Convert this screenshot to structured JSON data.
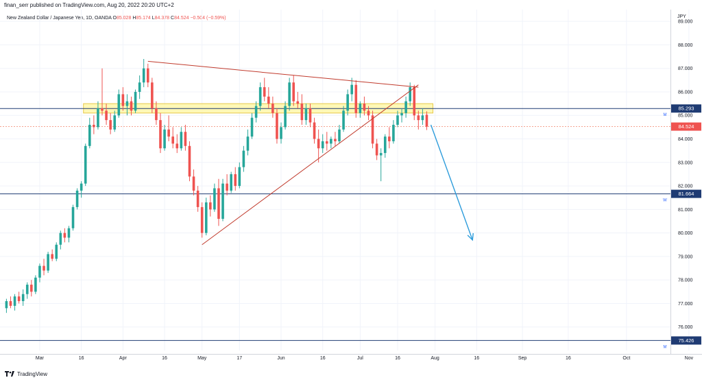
{
  "header": {
    "published_by": "finan_serr published on TradingView.com, Aug 20, 2022 20:20 UTC+2"
  },
  "symbol": {
    "name": "New Zealand Dollar / Japanese Yen, 1D, OANDA",
    "open_label": "O",
    "open": "85.028",
    "high_label": "H",
    "high": "85.174",
    "low_label": "L",
    "low": "84.378",
    "close_label": "C",
    "close": "84.524",
    "change": "−0.504 (−0.59%)"
  },
  "currency": "JPY",
  "footer": {
    "brand": "TradingView"
  },
  "colors": {
    "up": "#26a69a",
    "down": "#ef5350",
    "trendline": "#c0392b",
    "support": "#1f3b73",
    "zone_fill": "#fff59d",
    "zone_border": "#e6c84a",
    "arrow": "#2d9cdb",
    "grid": "#f0f3fa",
    "price_line": "#f5a28e"
  },
  "chart_data": {
    "type": "candlestick",
    "title": "New Zealand Dollar / Japanese Yen, 1D, OANDA",
    "ylim": [
      75.0,
      89.5
    ],
    "y_ticks": [
      "76.000",
      "77.000",
      "78.000",
      "79.000",
      "80.000",
      "81.000",
      "82.000",
      "83.000",
      "84.000",
      "85.000",
      "86.000",
      "87.000",
      "88.000",
      "89.000"
    ],
    "x_ticks": [
      "Mar",
      "16",
      "Apr",
      "16",
      "May",
      "17",
      "Jun",
      "16",
      "Jul",
      "16",
      "Aug",
      "16",
      "Sep",
      "16",
      "Oct",
      "Nov"
    ],
    "x_tick_index": [
      8,
      18,
      28,
      38,
      47,
      56,
      66,
      76,
      85,
      94,
      103,
      113,
      124,
      135,
      149,
      164
    ],
    "grid": true,
    "candles": [
      [
        76.8,
        77.2,
        76.6,
        77.1
      ],
      [
        77.1,
        77.3,
        76.8,
        76.9
      ],
      [
        76.9,
        77.4,
        76.7,
        77.3
      ],
      [
        77.3,
        77.5,
        77.0,
        77.1
      ],
      [
        77.1,
        77.6,
        76.9,
        77.4
      ],
      [
        77.4,
        77.9,
        77.2,
        77.8
      ],
      [
        77.8,
        78.0,
        77.3,
        77.5
      ],
      [
        77.5,
        78.2,
        77.4,
        78.1
      ],
      [
        78.1,
        78.7,
        77.9,
        78.6
      ],
      [
        78.6,
        78.9,
        78.2,
        78.4
      ],
      [
        78.4,
        79.2,
        78.3,
        79.1
      ],
      [
        79.1,
        79.3,
        78.8,
        78.9
      ],
      [
        78.9,
        79.6,
        78.8,
        79.5
      ],
      [
        79.5,
        80.1,
        79.3,
        80.0
      ],
      [
        80.0,
        80.2,
        79.6,
        79.8
      ],
      [
        79.8,
        80.3,
        79.6,
        80.2
      ],
      [
        80.2,
        81.2,
        80.1,
        81.1
      ],
      [
        81.1,
        81.9,
        81.0,
        81.8
      ],
      [
        81.8,
        82.2,
        81.5,
        82.1
      ],
      [
        82.1,
        83.8,
        82.0,
        83.7
      ],
      [
        83.7,
        84.9,
        83.6,
        84.6
      ],
      [
        84.6,
        85.0,
        84.2,
        84.5
      ],
      [
        84.5,
        85.6,
        84.4,
        85.3
      ],
      [
        85.3,
        87.0,
        85.0,
        85.2
      ],
      [
        85.2,
        85.5,
        84.6,
        84.8
      ],
      [
        84.8,
        85.1,
        84.2,
        84.4
      ],
      [
        84.4,
        85.2,
        84.3,
        85.0
      ],
      [
        85.0,
        86.1,
        84.9,
        85.9
      ],
      [
        85.9,
        86.2,
        85.2,
        85.4
      ],
      [
        85.4,
        85.9,
        85.0,
        85.6
      ],
      [
        85.6,
        85.8,
        85.0,
        85.2
      ],
      [
        85.2,
        86.1,
        85.1,
        86.0
      ],
      [
        86.0,
        86.7,
        85.7,
        86.4
      ],
      [
        86.4,
        87.4,
        86.2,
        87.0
      ],
      [
        87.0,
        87.2,
        86.2,
        86.4
      ],
      [
        86.4,
        86.6,
        85.1,
        85.3
      ],
      [
        85.3,
        85.6,
        84.6,
        84.8
      ],
      [
        84.8,
        85.1,
        83.4,
        83.6
      ],
      [
        83.6,
        84.6,
        83.5,
        84.4
      ],
      [
        84.4,
        85.0,
        83.9,
        84.1
      ],
      [
        84.1,
        84.5,
        83.6,
        83.8
      ],
      [
        83.8,
        84.2,
        83.4,
        83.6
      ],
      [
        83.6,
        84.5,
        83.5,
        84.3
      ],
      [
        84.3,
        84.6,
        83.5,
        83.7
      ],
      [
        83.7,
        83.9,
        82.2,
        82.4
      ],
      [
        82.4,
        82.7,
        81.6,
        81.8
      ],
      [
        81.8,
        82.0,
        80.9,
        81.1
      ],
      [
        81.1,
        81.3,
        79.8,
        80.0
      ],
      [
        80.0,
        81.5,
        79.9,
        81.3
      ],
      [
        81.3,
        81.6,
        80.7,
        81.0
      ],
      [
        81.0,
        82.1,
        80.9,
        81.9
      ],
      [
        81.9,
        82.3,
        80.3,
        80.6
      ],
      [
        80.6,
        82.3,
        80.5,
        82.1
      ],
      [
        82.1,
        82.5,
        81.6,
        81.8
      ],
      [
        81.8,
        82.6,
        81.7,
        82.5
      ],
      [
        82.5,
        82.8,
        81.8,
        82.0
      ],
      [
        82.0,
        83.0,
        81.9,
        82.8
      ],
      [
        82.8,
        83.7,
        82.6,
        83.5
      ],
      [
        83.5,
        84.4,
        83.3,
        84.1
      ],
      [
        84.1,
        85.1,
        84.0,
        84.9
      ],
      [
        84.9,
        85.6,
        84.7,
        85.4
      ],
      [
        85.4,
        86.4,
        85.2,
        86.2
      ],
      [
        86.2,
        86.6,
        85.6,
        85.8
      ],
      [
        85.8,
        86.2,
        85.3,
        85.5
      ],
      [
        85.5,
        85.8,
        84.9,
        85.1
      ],
      [
        85.1,
        85.3,
        83.8,
        84.0
      ],
      [
        84.0,
        84.7,
        83.8,
        84.5
      ],
      [
        84.5,
        85.6,
        84.4,
        85.4
      ],
      [
        85.4,
        86.6,
        85.2,
        86.4
      ],
      [
        86.4,
        86.7,
        85.4,
        85.6
      ],
      [
        85.6,
        86.0,
        85.3,
        85.5
      ],
      [
        85.5,
        85.9,
        84.6,
        84.8
      ],
      [
        84.8,
        85.5,
        84.6,
        85.3
      ],
      [
        85.3,
        85.5,
        84.5,
        84.7
      ],
      [
        84.7,
        84.9,
        83.8,
        84.0
      ],
      [
        84.0,
        84.4,
        83.0,
        83.6
      ],
      [
        83.6,
        84.2,
        83.4,
        83.9
      ],
      [
        83.9,
        84.3,
        83.5,
        83.8
      ],
      [
        83.8,
        84.1,
        83.6,
        84.0
      ],
      [
        84.0,
        84.3,
        83.7,
        83.9
      ],
      [
        83.9,
        84.6,
        83.8,
        84.4
      ],
      [
        84.4,
        85.4,
        84.3,
        85.2
      ],
      [
        85.2,
        86.1,
        85.0,
        85.9
      ],
      [
        85.9,
        86.6,
        85.6,
        86.3
      ],
      [
        86.3,
        86.5,
        84.9,
        85.1
      ],
      [
        85.1,
        85.6,
        84.9,
        85.5
      ],
      [
        85.5,
        85.8,
        85.0,
        85.2
      ],
      [
        85.2,
        85.4,
        84.8,
        85.0
      ],
      [
        85.0,
        85.2,
        83.6,
        83.8
      ],
      [
        83.8,
        84.0,
        83.1,
        83.3
      ],
      [
        83.3,
        83.6,
        82.2,
        83.4
      ],
      [
        83.4,
        84.2,
        83.2,
        84.1
      ],
      [
        84.1,
        84.5,
        83.6,
        83.9
      ],
      [
        83.9,
        84.8,
        83.8,
        84.6
      ],
      [
        84.6,
        85.2,
        84.5,
        85.0
      ],
      [
        85.0,
        85.3,
        84.7,
        85.1
      ],
      [
        85.1,
        85.8,
        84.9,
        85.6
      ],
      [
        85.6,
        86.4,
        85.4,
        86.2
      ],
      [
        86.2,
        86.3,
        84.8,
        85.0
      ],
      [
        85.0,
        85.2,
        84.4,
        84.8
      ],
      [
        84.8,
        85.3,
        84.6,
        85.0
      ],
      [
        85.028,
        85.174,
        84.378,
        84.524
      ]
    ],
    "levels": [
      {
        "price": 85.293,
        "label": "85.293",
        "marker": "M"
      },
      {
        "price": 81.664,
        "label": "81.664",
        "marker": "W"
      },
      {
        "price": 75.426,
        "label": "75.426",
        "marker": "M"
      }
    ],
    "last_price": {
      "value": 84.524,
      "label": "84.524"
    },
    "zone": {
      "from_index": 19,
      "to_index": 102,
      "low": 85.1,
      "high": 85.5
    },
    "trendlines": [
      {
        "x1": 34,
        "y1": 87.3,
        "x2": 99,
        "y2": 86.2
      },
      {
        "x1": 47,
        "y1": 79.5,
        "x2": 99,
        "y2": 86.3
      }
    ],
    "arrow": {
      "x1": 102,
      "y1": 84.6,
      "x2": 112,
      "y2": 79.7
    }
  }
}
